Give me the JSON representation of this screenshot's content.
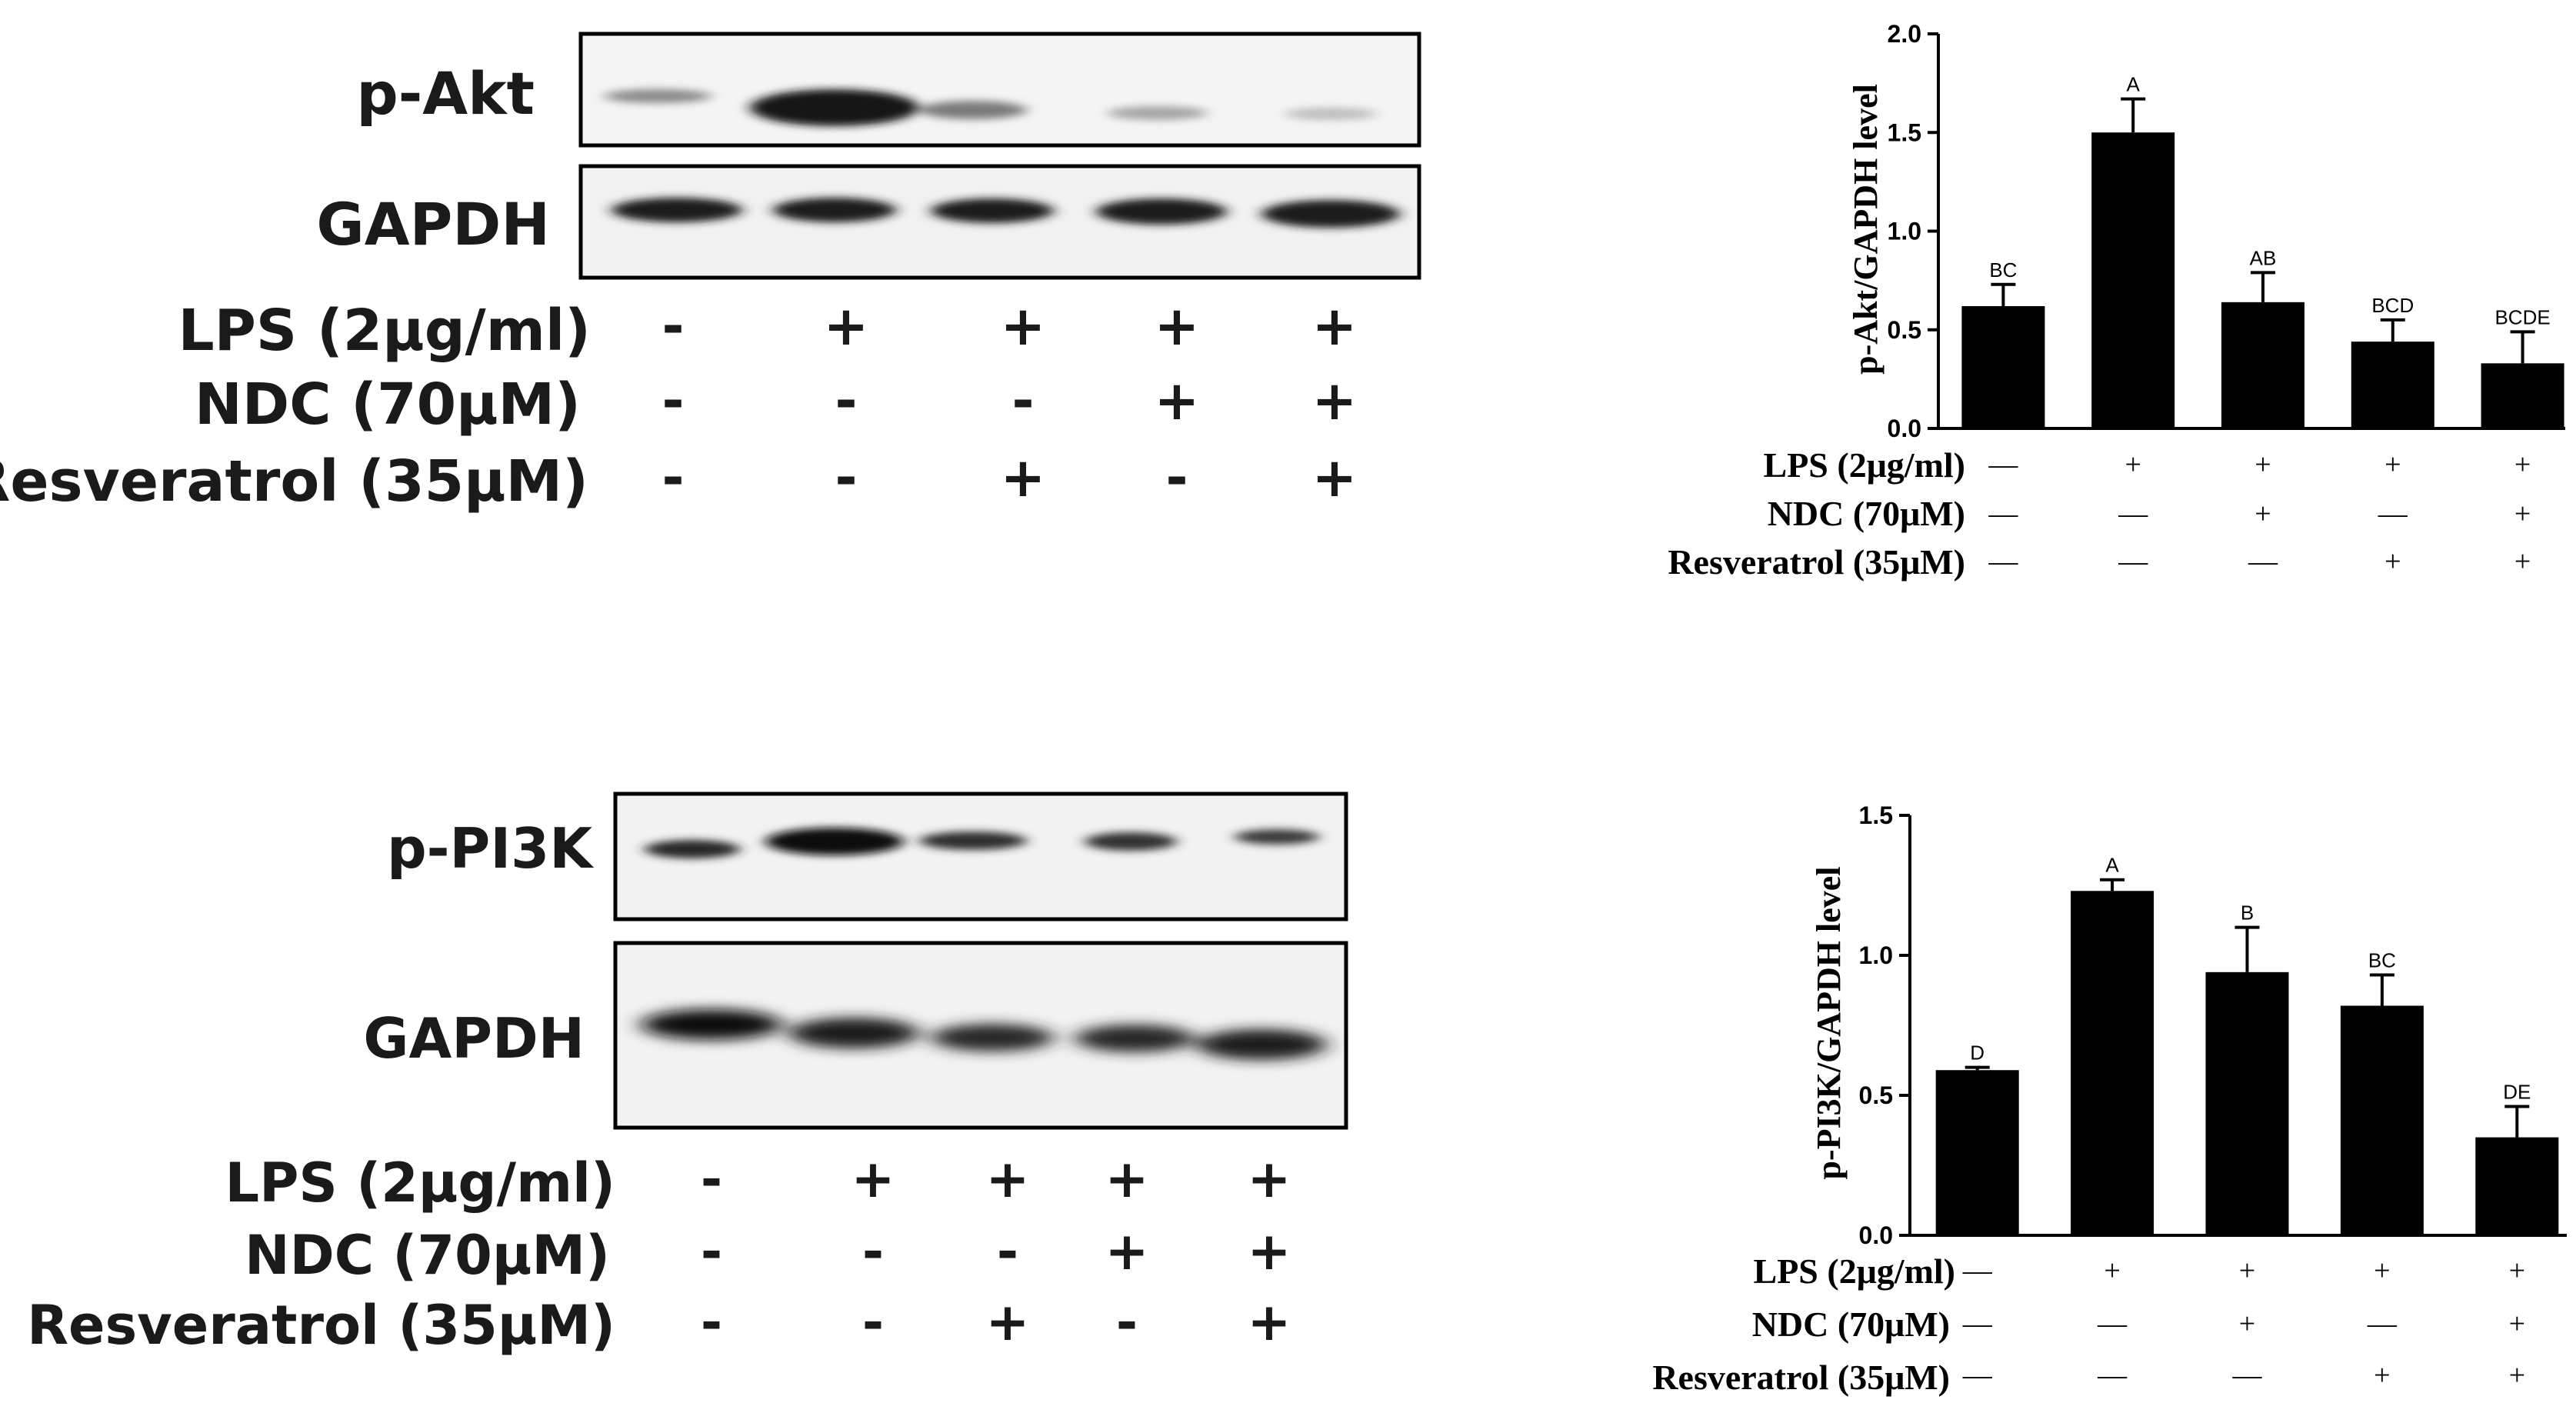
{
  "blots": [
    {
      "bands": [
        "p-Akt",
        "GAPDH"
      ],
      "conditions": [
        {
          "label": "LPS (2μg/ml)",
          "signs": [
            "-",
            "+",
            "+",
            "+",
            "+"
          ]
        },
        {
          "label": "NDC (70μM)",
          "signs": [
            "-",
            "-",
            "-",
            "+",
            "+"
          ]
        },
        {
          "label": "Resveratrol (35μM)",
          "signs": [
            "-",
            "-",
            "+",
            "-",
            "+"
          ]
        }
      ]
    },
    {
      "bands": [
        "p-PI3K",
        "GAPDH"
      ],
      "conditions": [
        {
          "label": "LPS (2μg/ml)",
          "signs": [
            "-",
            "+",
            "+",
            "+",
            "+"
          ]
        },
        {
          "label": "NDC (70μM)",
          "signs": [
            "-",
            "-",
            "-",
            "+",
            "+"
          ]
        },
        {
          "label": "Resveratrol (35μM)",
          "signs": [
            "-",
            "-",
            "+",
            "-",
            "+"
          ]
        }
      ]
    }
  ],
  "chart_data": [
    {
      "type": "bar",
      "title": "",
      "ylabel": "p-Akt/GAPDH level",
      "xlabel": "",
      "ylim": [
        0,
        2.0
      ],
      "yticks": [
        "0.0",
        "0.5",
        "1.0",
        "1.5",
        "2.0"
      ],
      "values": [
        0.62,
        1.5,
        0.64,
        0.44,
        0.33
      ],
      "errors": [
        0.11,
        0.17,
        0.15,
        0.11,
        0.16
      ],
      "significance": [
        "BC",
        "A",
        "AB",
        "BCD",
        "BCDE"
      ],
      "bar_color": "#000000",
      "conditions": [
        {
          "label": "LPS (2μg/ml)",
          "signs": [
            "—",
            "+",
            "+",
            "+",
            "+"
          ]
        },
        {
          "label": "NDC (70μM)",
          "signs": [
            "—",
            "—",
            "+",
            "—",
            "+"
          ]
        },
        {
          "label": "Resveratrol (35μM)",
          "signs": [
            "—",
            "—",
            "—",
            "+",
            "+"
          ]
        }
      ]
    },
    {
      "type": "bar",
      "title": "",
      "ylabel": "p-PI3K/GAPDH level",
      "xlabel": "",
      "ylim": [
        0,
        1.5
      ],
      "yticks": [
        "0.0",
        "0.5",
        "1.0",
        "1.5"
      ],
      "values": [
        0.59,
        1.23,
        0.94,
        0.82,
        0.35
      ],
      "errors": [
        0.01,
        0.04,
        0.16,
        0.11,
        0.11
      ],
      "significance": [
        "D",
        "A",
        "B",
        "BC",
        "DE"
      ],
      "bar_color": "#000000",
      "conditions": [
        {
          "label": "LPS (2μg/ml)",
          "signs": [
            "—",
            "+",
            "+",
            "+",
            "+"
          ]
        },
        {
          "label": "NDC (70μM)",
          "signs": [
            "—",
            "—",
            "+",
            "—",
            "+"
          ]
        },
        {
          "label": "Resveratrol (35μM)",
          "signs": [
            "—",
            "—",
            "—",
            "+",
            "+"
          ]
        }
      ]
    }
  ]
}
